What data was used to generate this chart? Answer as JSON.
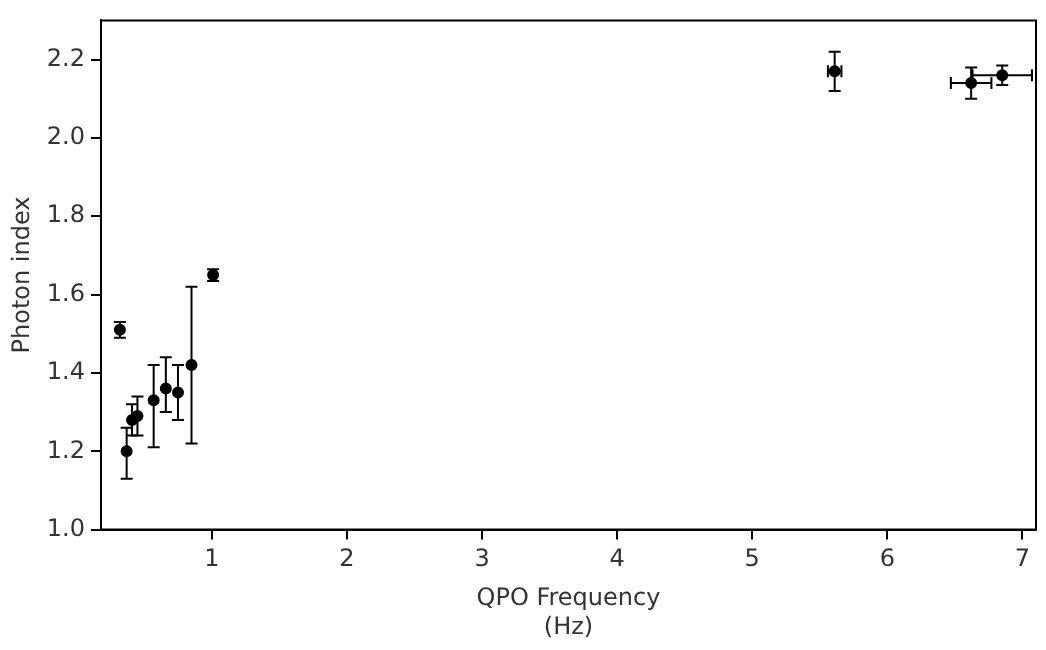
{
  "chart_data": {
    "type": "scatter",
    "xlabel": "QPO Frequency\n(Hz)",
    "ylabel": "Photon index",
    "x": [
      0.32,
      0.37,
      0.41,
      0.45,
      0.57,
      0.66,
      0.75,
      0.85,
      1.01,
      5.61,
      6.62,
      6.85
    ],
    "values": [
      1.51,
      1.2,
      1.28,
      1.29,
      1.33,
      1.36,
      1.35,
      1.42,
      1.65,
      2.17,
      2.14,
      2.16
    ],
    "errors": [
      0.02,
      [
        1.13,
        1.26
      ],
      [
        1.24,
        1.32
      ],
      [
        1.24,
        1.34
      ],
      [
        1.21,
        1.42
      ],
      [
        1.3,
        1.44
      ],
      [
        1.28,
        1.42
      ],
      [
        1.22,
        1.62
      ],
      0.015,
      0.05,
      0.04,
      0.025
    ],
    "xerrors": [
      null,
      null,
      null,
      null,
      null,
      null,
      null,
      null,
      null,
      0.05,
      0.15,
      0.22
    ],
    "color": "#000000",
    "marker": "circle",
    "grid": false,
    "legend": false,
    "xlim": [
      0.18,
      7.1
    ],
    "xticks": [
      1,
      2,
      3,
      4,
      5,
      6,
      7
    ],
    "ylim": [
      1.0,
      2.3
    ],
    "yticks": [
      {
        "value": 1.0,
        "label": "1.0"
      },
      {
        "value": 1.2,
        "label": "1.2"
      },
      {
        "value": 1.4,
        "label": "1.4"
      },
      {
        "value": 1.6,
        "label": "1.6"
      },
      {
        "value": 1.8,
        "label": "1.8"
      },
      {
        "value": 2.0,
        "label": "2.0"
      },
      {
        "value": 2.2,
        "label": "2.2"
      }
    ]
  }
}
